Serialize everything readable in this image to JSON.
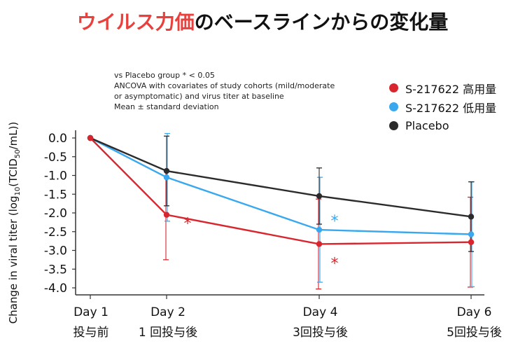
{
  "title": {
    "part1": "ウイルス力価",
    "part2": "のベースラインからの変化量"
  },
  "notes": [
    "vs Placebo group * < 0.05",
    "ANCOVA with covariates of study cohorts (mild/moderate",
    "or asymptomatic) and virus titer at baseline",
    "Mean ± standard deviation"
  ],
  "colors": {
    "high": "#d9262e",
    "low": "#3aa8ee",
    "placebo": "#2b2b2b",
    "title_accent": "#e8403c"
  },
  "chart_data": {
    "type": "line",
    "ylabel_prefix": "Change in viral titer (log",
    "ylabel_sub": "10",
    "ylabel_suffix": "(TCID",
    "ylabel_sub2": "50",
    "ylabel_end": "/mL))",
    "ylim": [
      -4.0,
      0.0
    ],
    "yticks": [
      "0.0",
      "-0.5",
      "-1.0",
      "-1.5",
      "-2.0",
      "-2.5",
      "-3.0",
      "-3.5",
      "-4.0"
    ],
    "x": [
      1,
      2,
      4,
      6
    ],
    "categories": [
      "Day 1",
      "Day 2",
      "Day 4",
      "Day 6"
    ],
    "categories_sub": [
      "投与前",
      "1 回投与後",
      "3回投与後",
      "5回投与後"
    ],
    "series": [
      {
        "name": "S-217622 高用量",
        "key": "high",
        "values": [
          0.0,
          -2.05,
          -2.83,
          -2.78
        ],
        "err": [
          0.0,
          1.2,
          1.2,
          1.2
        ]
      },
      {
        "name": "S-217622 低用量",
        "key": "low",
        "values": [
          0.0,
          -1.05,
          -2.45,
          -2.57
        ],
        "err": [
          0.0,
          1.17,
          1.4,
          1.4
        ]
      },
      {
        "name": "Placebo",
        "key": "placebo",
        "values": [
          0.0,
          -0.88,
          -1.55,
          -2.1
        ],
        "err": [
          0.0,
          0.93,
          0.75,
          0.93
        ]
      }
    ],
    "annotations": [
      {
        "text": "*",
        "series": "high",
        "x": 2
      },
      {
        "text": "*",
        "series": "low",
        "x": 4
      },
      {
        "text": "*",
        "series": "high",
        "x": 4
      }
    ]
  }
}
